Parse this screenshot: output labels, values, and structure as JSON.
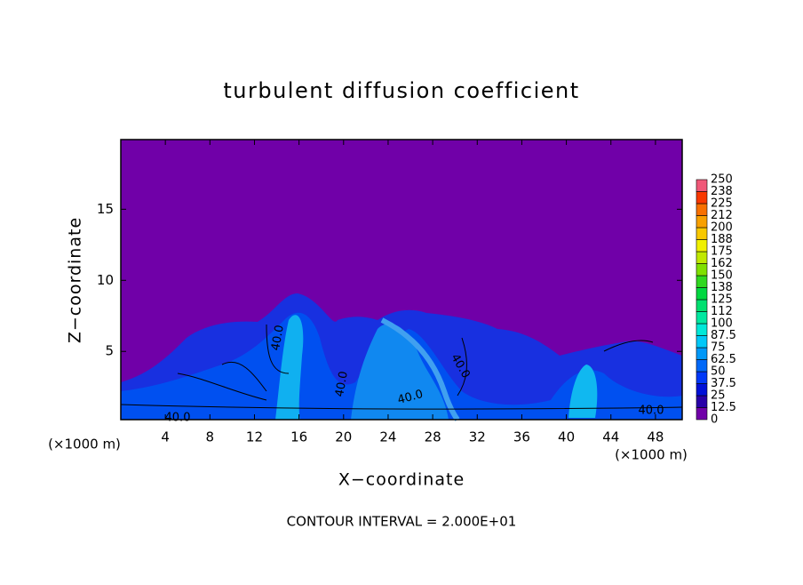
{
  "chart_data": {
    "type": "contour",
    "title": "turbulent diffusion coefficient",
    "xlabel": "X−coordinate",
    "ylabel": "Z−coordinate",
    "x_unit_left": "(×1000 m)",
    "x_unit_right": "(×1000 m)",
    "xlim": [
      0,
      50.4
    ],
    "xticks": [
      4,
      8,
      12,
      16,
      20,
      24,
      28,
      32,
      36,
      40,
      44,
      48
    ],
    "ylim": [
      0.2,
      19.9
    ],
    "yticks": [
      5,
      10,
      15
    ],
    "background_color": "#7000a8",
    "contour_labels": [
      "40.0",
      "40.0",
      "40.0",
      "40.0",
      "40.0",
      "40.0"
    ],
    "footer": "CONTOUR INTERVAL = 2.000E+01",
    "colorbar": {
      "ticks": [
        0,
        12.5,
        25,
        37.5,
        50,
        62.5,
        75,
        87.5,
        100,
        112,
        125,
        138,
        150,
        162,
        175,
        188,
        200,
        212,
        225,
        238,
        250
      ],
      "colors": [
        "#7000a8",
        "#2800a8",
        "#0010d8",
        "#0038f8",
        "#0068f8",
        "#0098f8",
        "#00c8f8",
        "#00e8d8",
        "#00e8a0",
        "#00e070",
        "#00d840",
        "#30d820",
        "#80e000",
        "#c0e800",
        "#f0f000",
        "#f8c800",
        "#f8a000",
        "#f87000",
        "#f83800",
        "#f05878"
      ]
    }
  }
}
